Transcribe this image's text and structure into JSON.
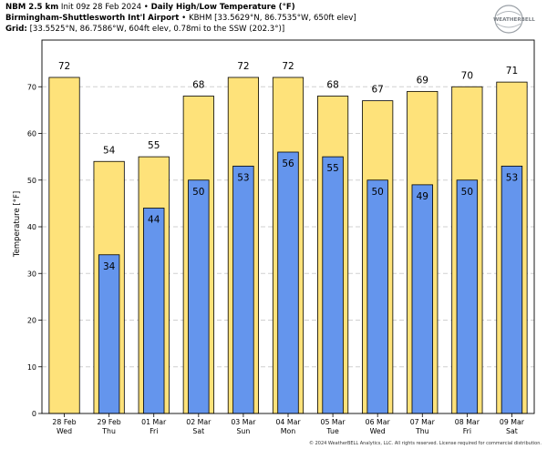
{
  "header": {
    "line1_model": "NBM 2.5 km",
    "line1_init": "Init 09z 28 Feb 2024",
    "line1_sep": "•",
    "line1_title": "Daily High/Low Temperature (°F)",
    "line2_station": "Birmingham-Shuttlesworth Int'l Airport",
    "line2_sep": "•",
    "line2_detail": "KBHM [33.5629°N, 86.7535°W, 650ft elev]",
    "line3_label": "Grid:",
    "line3_detail": "[33.5525°N, 86.7586°W, 604ft elev, 0.78mi to the SSW (202.3°)]"
  },
  "logo": {
    "text": "WEATHERBELL"
  },
  "copyright": "© 2024 WeatherBELL Analytics, LLC. All rights reserved. License required for commercial distribution.",
  "colors": {
    "high": "#fee27a",
    "low": "#6495ed",
    "border": "#000000",
    "grid": "#d0d0d0"
  },
  "chart_data": {
    "type": "bar",
    "ylabel": "Temperature [°F]",
    "ylim": [
      0,
      80
    ],
    "yticks": [
      0,
      10,
      20,
      30,
      40,
      50,
      60,
      70
    ],
    "grid": true,
    "categories": [
      {
        "date": "28 Feb",
        "day": "Wed"
      },
      {
        "date": "29 Feb",
        "day": "Thu"
      },
      {
        "date": "01 Mar",
        "day": "Fri"
      },
      {
        "date": "02 Mar",
        "day": "Sat"
      },
      {
        "date": "03 Mar",
        "day": "Sun"
      },
      {
        "date": "04 Mar",
        "day": "Mon"
      },
      {
        "date": "05 Mar",
        "day": "Tue"
      },
      {
        "date": "06 Mar",
        "day": "Wed"
      },
      {
        "date": "07 Mar",
        "day": "Thu"
      },
      {
        "date": "08 Mar",
        "day": "Fri"
      },
      {
        "date": "09 Mar",
        "day": "Sat"
      }
    ],
    "series": [
      {
        "values": [
          72,
          54,
          55,
          68,
          72,
          72,
          68,
          67,
          69,
          70,
          71
        ]
      },
      {
        "values": [
          null,
          34,
          44,
          50,
          53,
          56,
          55,
          50,
          49,
          50,
          53
        ]
      }
    ]
  }
}
